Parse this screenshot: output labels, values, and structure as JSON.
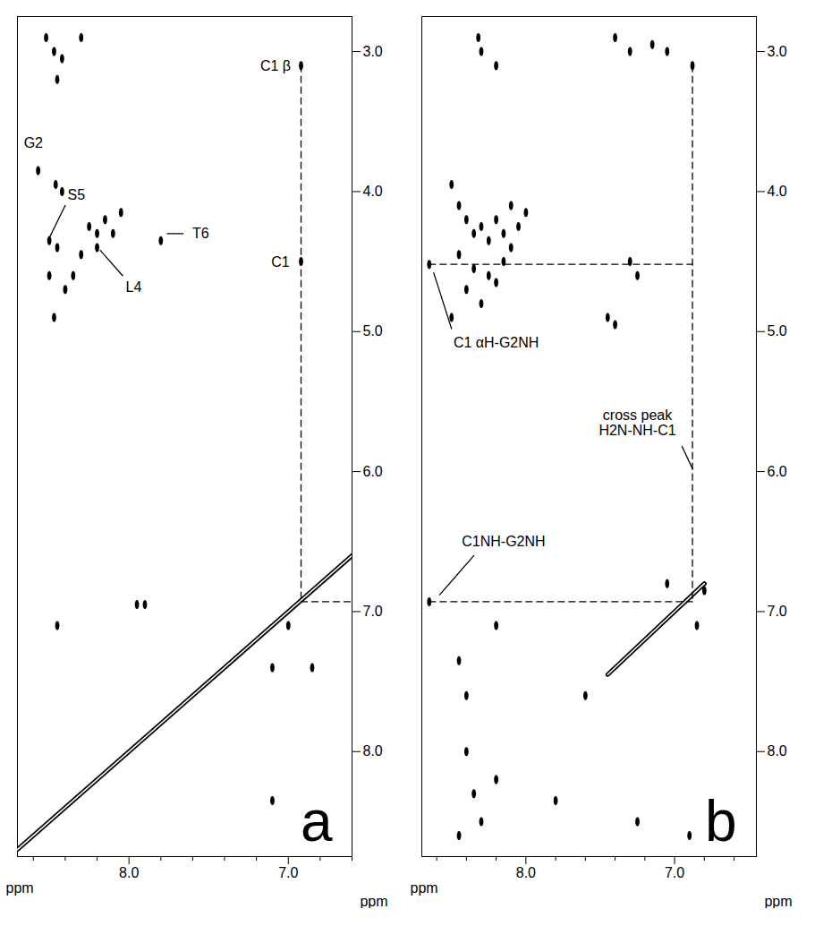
{
  "chart_data": [
    {
      "type": "scatter",
      "panel": "a",
      "color": "#000000",
      "xlim": [
        8.7,
        6.6
      ],
      "xticks": [
        8,
        7
      ],
      "x_minor_ticks": [
        8.6,
        8.4,
        8.2,
        7.8,
        7.6,
        7.4,
        7.2,
        6.8,
        6.6
      ],
      "ylim": [
        2.75,
        8.75
      ],
      "yticks": [
        3,
        4,
        5,
        6,
        7,
        8
      ],
      "x_label": "ppm",
      "y_label": "ppm",
      "diagonal": {
        "x": [
          8.7,
          6.6
        ],
        "y": [
          8.7,
          6.6
        ]
      },
      "peaks": {
        "x": [
          8.52,
          8.47,
          8.42,
          8.3,
          8.45,
          8.57,
          8.46,
          8.42,
          8.5,
          8.45,
          8.25,
          8.2,
          8.15,
          8.1,
          8.05,
          8.2,
          8.3,
          8.35,
          8.4,
          8.5,
          8.47,
          7.8,
          6.92,
          6.92,
          8.45,
          7.95,
          7.9,
          7.1,
          6.85,
          7.1,
          7.0
        ],
        "y": [
          2.9,
          3.0,
          3.05,
          2.9,
          3.2,
          3.85,
          3.95,
          4.0,
          4.35,
          4.4,
          4.25,
          4.3,
          4.2,
          4.3,
          4.15,
          4.4,
          4.45,
          4.6,
          4.7,
          4.6,
          4.9,
          4.35,
          4.5,
          3.1,
          7.1,
          6.95,
          6.95,
          7.4,
          7.4,
          8.35,
          7.1
        ]
      },
      "dashed_lines": [
        {
          "x": [
            6.92,
            6.92
          ],
          "y": [
            3.1,
            6.93
          ]
        },
        {
          "x": [
            6.92,
            6.6
          ],
          "y": [
            6.93,
            6.93
          ]
        }
      ],
      "annotations": [
        {
          "text": "G2",
          "x": 8.6,
          "y": 3.65
        },
        {
          "text": "S5",
          "x": 8.33,
          "y": 4.02
        },
        {
          "text": "L4",
          "x": 7.97,
          "y": 4.68
        },
        {
          "text": "T6",
          "x": 7.55,
          "y": 4.3
        },
        {
          "text": "C1",
          "x": 7.05,
          "y": 4.5
        },
        {
          "text": "C1 β",
          "x": 7.08,
          "y": 3.1
        }
      ],
      "leaders": [
        {
          "x": [
            8.4,
            8.5
          ],
          "y": [
            4.1,
            4.33
          ]
        },
        {
          "x": [
            8.04,
            8.18
          ],
          "y": [
            4.6,
            4.42
          ]
        },
        {
          "x": [
            7.66,
            7.76
          ],
          "y": [
            4.3,
            4.3
          ]
        }
      ]
    },
    {
      "type": "scatter",
      "panel": "b",
      "color": "#000000",
      "xlim": [
        8.7,
        6.45
      ],
      "xticks": [
        8,
        7
      ],
      "x_minor_ticks": [
        8.6,
        8.4,
        8.2,
        7.8,
        7.6,
        7.4,
        7.2,
        6.8,
        6.6
      ],
      "ylim": [
        2.75,
        8.75
      ],
      "yticks": [
        3,
        4,
        5,
        6,
        7,
        8
      ],
      "x_label": "ppm",
      "y_label": "ppm",
      "diagonal": {
        "x": [
          7.45,
          6.8
        ],
        "y": [
          7.45,
          6.8
        ]
      },
      "peaks": {
        "x": [
          8.3,
          8.2,
          8.32,
          7.4,
          7.3,
          7.15,
          7.05,
          6.88,
          8.65,
          8.5,
          8.45,
          8.4,
          8.35,
          8.3,
          8.25,
          8.2,
          8.15,
          8.1,
          8.05,
          8.0,
          8.45,
          8.35,
          8.25,
          8.15,
          8.4,
          8.3,
          8.2,
          8.5,
          8.1,
          7.45,
          7.4,
          7.25,
          7.3,
          8.65,
          8.45,
          8.4,
          8.2,
          7.05,
          6.8,
          6.85,
          8.4,
          8.35,
          8.3,
          8.2,
          8.45,
          7.8,
          7.6,
          7.25,
          6.9
        ],
        "y": [
          3.0,
          3.1,
          2.9,
          2.9,
          3.0,
          2.95,
          3.0,
          3.1,
          4.52,
          3.95,
          4.1,
          4.2,
          4.3,
          4.25,
          4.35,
          4.2,
          4.3,
          4.1,
          4.25,
          4.15,
          4.45,
          4.55,
          4.6,
          4.5,
          4.7,
          4.8,
          4.65,
          4.9,
          4.4,
          4.9,
          4.95,
          4.6,
          4.5,
          6.93,
          7.35,
          7.6,
          7.1,
          6.8,
          6.85,
          7.1,
          8.0,
          8.3,
          8.5,
          8.2,
          8.6,
          8.35,
          7.6,
          8.5,
          8.6
        ]
      },
      "dashed_lines": [
        {
          "x": [
            8.65,
            6.88
          ],
          "y": [
            4.52,
            4.52
          ]
        },
        {
          "x": [
            6.88,
            6.88
          ],
          "y": [
            3.1,
            6.93
          ]
        },
        {
          "x": [
            8.65,
            6.88
          ],
          "y": [
            6.93,
            6.93
          ]
        }
      ],
      "annotations": [
        {
          "text": "C1 αH-G2NH",
          "x": 8.2,
          "y": 5.08
        },
        {
          "text": "cross peak\nH2N-NH-C1",
          "x": 7.25,
          "y": 5.65
        },
        {
          "text": "C1NH-G2NH",
          "x": 8.15,
          "y": 6.5
        }
      ],
      "leaders": [
        {
          "x": [
            8.62,
            8.5
          ],
          "y": [
            4.58,
            4.98
          ]
        },
        {
          "x": [
            6.95,
            6.88
          ],
          "y": [
            5.82,
            5.98
          ]
        },
        {
          "x": [
            8.58,
            8.35
          ],
          "y": [
            6.88,
            6.6
          ]
        }
      ]
    }
  ]
}
